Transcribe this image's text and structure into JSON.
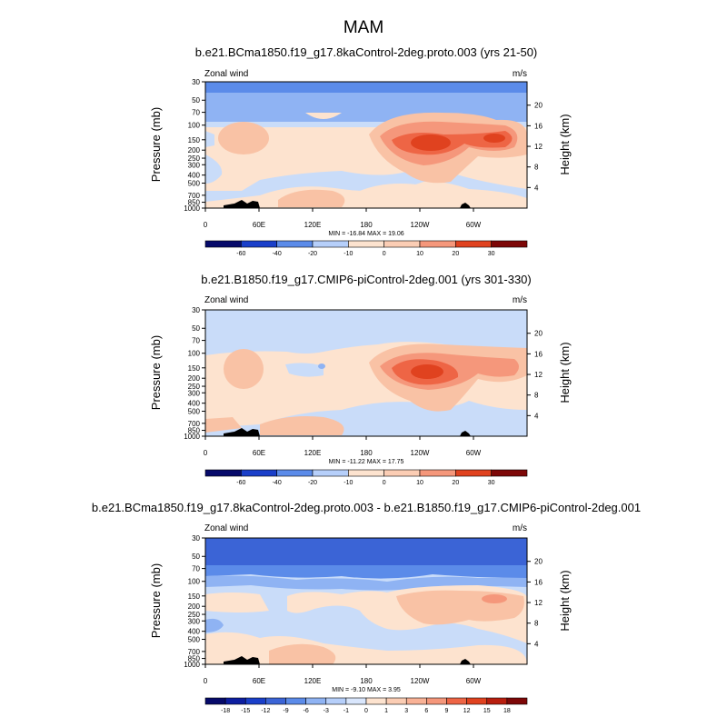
{
  "page_title": "MAM",
  "colors": {
    "neg4": "#3b64d6",
    "neg3": "#5b8be9",
    "neg2": "#8fb3f3",
    "neg1": "#c9dcf9",
    "zero": "#fde3cf",
    "pos1": "#f9c2a5",
    "pos2": "#f5977b",
    "pos3": "#ee6545",
    "pos4": "#e0421f",
    "axis": "#000000",
    "terrain": "#000000"
  },
  "chart_data": [
    {
      "type": "heatmap",
      "title": "b.e21.BCma1850.f19_g17.8kaControl-2deg.proto.003 (yrs 21-50)",
      "left_label": "Zonal wind",
      "right_label": "m/s",
      "ylabel": "Pressure (mb)",
      "y2label": "Height (km)",
      "pressure_ticks": [
        "30",
        "50",
        "70",
        "100",
        "150",
        "200",
        "250",
        "300",
        "400",
        "500",
        "700",
        "850",
        "1000"
      ],
      "height_ticks": [
        "20",
        "16",
        "12",
        "8",
        "4"
      ],
      "xticks": [
        "0",
        "60E",
        "120E",
        "180",
        "120W",
        "60W"
      ],
      "stats": "MIN = -16.84  MAX =  19.06",
      "colorbar_labels": [
        "-60",
        "-40",
        "-20",
        "-10",
        "0",
        "10",
        "20",
        "30"
      ],
      "xlim": [
        0,
        360
      ],
      "ylim_mb": [
        1000,
        30
      ]
    },
    {
      "type": "heatmap",
      "title": "b.e21.B1850.f19_g17.CMIP6-piControl-2deg.001 (yrs 301-330)",
      "left_label": "Zonal wind",
      "right_label": "m/s",
      "ylabel": "Pressure (mb)",
      "y2label": "Height (km)",
      "pressure_ticks": [
        "30",
        "50",
        "70",
        "100",
        "150",
        "200",
        "250",
        "300",
        "400",
        "500",
        "700",
        "850",
        "1000"
      ],
      "height_ticks": [
        "20",
        "16",
        "12",
        "8",
        "4"
      ],
      "xticks": [
        "0",
        "60E",
        "120E",
        "180",
        "120W",
        "60W"
      ],
      "stats": "MIN = -11.22  MAX =  17.75",
      "colorbar_labels": [
        "-60",
        "-40",
        "-20",
        "-10",
        "0",
        "10",
        "20",
        "30"
      ],
      "xlim": [
        0,
        360
      ],
      "ylim_mb": [
        1000,
        30
      ]
    },
    {
      "type": "heatmap",
      "title": "b.e21.BCma1850.f19_g17.8kaControl-2deg.proto.003 - b.e21.B1850.f19_g17.CMIP6-piControl-2deg.001",
      "left_label": "Zonal wind",
      "right_label": "m/s",
      "ylabel": "Pressure (mb)",
      "y2label": "Height (km)",
      "pressure_ticks": [
        "30",
        "50",
        "70",
        "100",
        "150",
        "200",
        "250",
        "300",
        "400",
        "500",
        "700",
        "850",
        "1000"
      ],
      "height_ticks": [
        "20",
        "16",
        "12",
        "8",
        "4"
      ],
      "xticks": [
        "0",
        "60E",
        "120E",
        "180",
        "120W",
        "60W"
      ],
      "stats": "MIN = -9.10  MAX =  3.95",
      "colorbar_labels": [
        "-18",
        "-15",
        "-12",
        "-9",
        "-6",
        "-3",
        "-1",
        "0",
        "1",
        "3",
        "6",
        "9",
        "12",
        "15",
        "18"
      ],
      "xlim": [
        0,
        360
      ],
      "ylim_mb": [
        1000,
        30
      ]
    }
  ]
}
